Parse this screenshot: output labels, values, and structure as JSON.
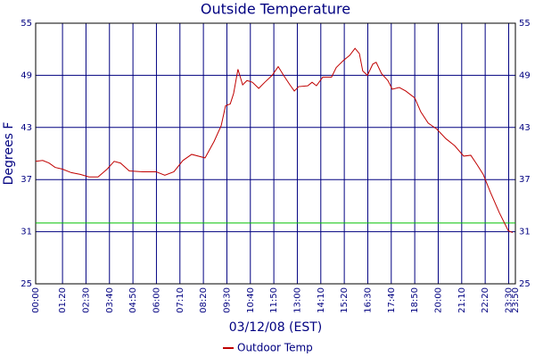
{
  "chart_data": {
    "type": "line",
    "title": "Outside Temperature",
    "x_label": "03/12/08 (EST)",
    "y_label": "Degrees F",
    "x": [
      0,
      21,
      40,
      58,
      80,
      106,
      133,
      159,
      186,
      213,
      234,
      253,
      279,
      319,
      359,
      385,
      412,
      439,
      465,
      505,
      532,
      553,
      566,
      580,
      590,
      603,
      617,
      630,
      646,
      665,
      683,
      705,
      723,
      739,
      758,
      771,
      784,
      811,
      824,
      837,
      856,
      882,
      896,
      917,
      936,
      952,
      965,
      975,
      989,
      1005,
      1015,
      1031,
      1050,
      1063,
      1084,
      1103,
      1130,
      1148,
      1170,
      1196,
      1223,
      1249,
      1276,
      1297,
      1316,
      1334,
      1356,
      1382,
      1409,
      1422
    ],
    "series": [
      {
        "name": "Outdoor Temp",
        "color": "#c00000",
        "values": [
          39.1,
          39.2,
          38.9,
          38.4,
          38.2,
          37.8,
          37.6,
          37.3,
          37.3,
          38.2,
          39.1,
          38.9,
          38.0,
          37.9,
          37.9,
          37.5,
          37.9,
          39.2,
          39.9,
          39.5,
          41.4,
          43.2,
          45.5,
          45.7,
          46.9,
          49.7,
          47.9,
          48.4,
          48.2,
          47.5,
          48.2,
          49.0,
          50.0,
          49.0,
          47.9,
          47.2,
          47.7,
          47.8,
          48.2,
          47.8,
          48.8,
          48.8,
          49.9,
          50.7,
          51.3,
          52.1,
          51.5,
          49.5,
          49.0,
          50.3,
          50.5,
          49.2,
          48.4,
          47.4,
          47.6,
          47.2,
          46.4,
          44.8,
          43.5,
          42.8,
          41.7,
          40.9,
          39.7,
          39.8,
          38.7,
          37.6,
          35.5,
          33.2,
          31.1,
          30.9
        ]
      }
    ],
    "reference_line": 32,
    "reference_color": "#00c000",
    "xlim": [
      0,
      1430
    ],
    "xticks": [
      {
        "value": 0,
        "label": "00:00"
      },
      {
        "value": 80,
        "label": "01:20"
      },
      {
        "value": 150,
        "label": "02:30"
      },
      {
        "value": 220,
        "label": "03:40"
      },
      {
        "value": 290,
        "label": "04:50"
      },
      {
        "value": 360,
        "label": "06:00"
      },
      {
        "value": 430,
        "label": "07:10"
      },
      {
        "value": 500,
        "label": "08:20"
      },
      {
        "value": 570,
        "label": "09:30"
      },
      {
        "value": 640,
        "label": "10:40"
      },
      {
        "value": 710,
        "label": "11:50"
      },
      {
        "value": 780,
        "label": "13:00"
      },
      {
        "value": 850,
        "label": "14:10"
      },
      {
        "value": 920,
        "label": "15:20"
      },
      {
        "value": 990,
        "label": "16:30"
      },
      {
        "value": 1060,
        "label": "17:40"
      },
      {
        "value": 1130,
        "label": "18:50"
      },
      {
        "value": 1200,
        "label": "20:00"
      },
      {
        "value": 1270,
        "label": "21:10"
      },
      {
        "value": 1340,
        "label": "22:20"
      },
      {
        "value": 1410,
        "label": "23:30"
      },
      {
        "value": 1430,
        "label": "23:50"
      }
    ],
    "ylim": [
      25,
      55
    ],
    "yticks": [
      25,
      31,
      37,
      43,
      49,
      55
    ],
    "grid": true,
    "grid_color": "#000080",
    "legend": "bottom"
  }
}
